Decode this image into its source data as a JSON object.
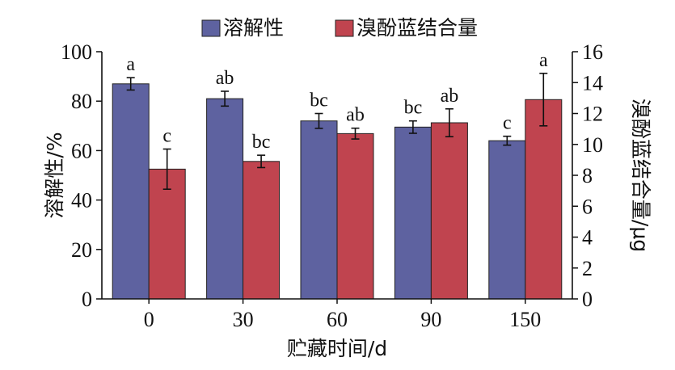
{
  "chart_data": {
    "type": "bar",
    "categories": [
      "0",
      "30",
      "60",
      "90",
      "150"
    ],
    "xlabel": "贮藏时间/d",
    "ylabel_left": "溶解性/%",
    "ylabel_right": "溴酚蓝结合量/μg",
    "ylim_left": [
      0,
      100
    ],
    "yticks_left": [
      "0",
      "20",
      "40",
      "60",
      "80",
      "100"
    ],
    "ylim_right": [
      0,
      16
    ],
    "yticks_right": [
      "0",
      "2",
      "4",
      "6",
      "8",
      "10",
      "12",
      "14",
      "16"
    ],
    "legend_position": "top",
    "grid": false,
    "series": [
      {
        "name": "溶解性",
        "axis": "left",
        "color": "#5e62a0",
        "values": [
          87,
          81,
          72,
          69.5,
          64
        ],
        "errors": [
          2.5,
          3,
          3,
          2.5,
          1.8
        ],
        "labels": [
          "a",
          "ab",
          "bc",
          "bc",
          "c"
        ]
      },
      {
        "name": "溴酚蓝结合量",
        "axis": "right",
        "color": "#c0444f",
        "values": [
          8.4,
          8.9,
          10.7,
          11.4,
          12.9
        ],
        "errors": [
          1.3,
          0.4,
          0.35,
          0.9,
          1.7
        ],
        "labels": [
          "c",
          "bc",
          "ab",
          "ab",
          "a"
        ]
      }
    ]
  }
}
